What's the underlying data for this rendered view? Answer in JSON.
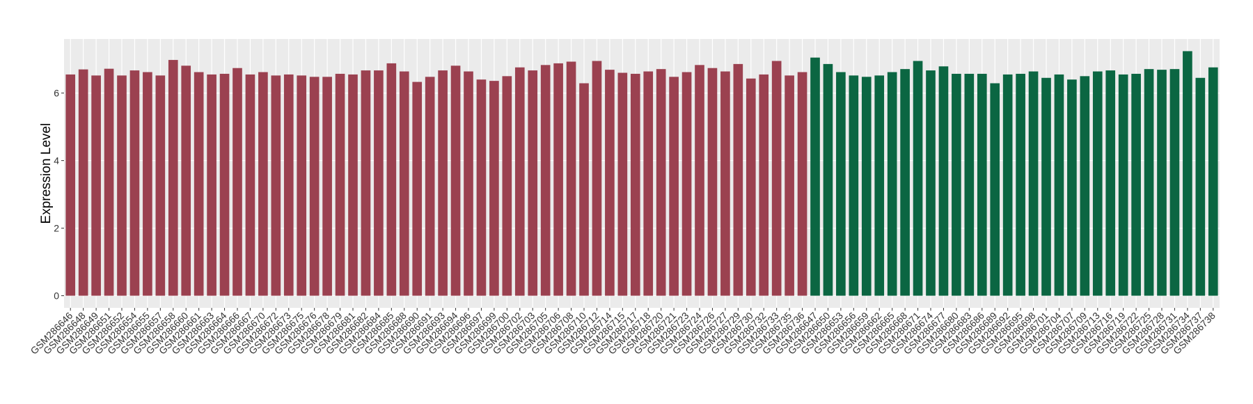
{
  "chart_data": {
    "type": "bar",
    "ylabel": "Expression Level",
    "categories": [
      "GSM286646",
      "GSM286648",
      "GSM286649",
      "GSM286651",
      "GSM286652",
      "GSM286654",
      "GSM286655",
      "GSM286657",
      "GSM286658",
      "GSM286660",
      "GSM286661",
      "GSM286663",
      "GSM286664",
      "GSM286666",
      "GSM286667",
      "GSM286670",
      "GSM286672",
      "GSM286673",
      "GSM286675",
      "GSM286676",
      "GSM286678",
      "GSM286679",
      "GSM286681",
      "GSM286682",
      "GSM286684",
      "GSM286685",
      "GSM286688",
      "GSM286690",
      "GSM286691",
      "GSM286693",
      "GSM286694",
      "GSM286696",
      "GSM286697",
      "GSM286699",
      "GSM286700",
      "GSM286702",
      "GSM286703",
      "GSM286705",
      "GSM286706",
      "GSM286708",
      "GSM286710",
      "GSM286712",
      "GSM286714",
      "GSM286715",
      "GSM286717",
      "GSM286718",
      "GSM286720",
      "GSM286721",
      "GSM286723",
      "GSM286724",
      "GSM286726",
      "GSM286727",
      "GSM286729",
      "GSM286730",
      "GSM286732",
      "GSM286733",
      "GSM286735",
      "GSM286736",
      "GSM286647",
      "GSM286650",
      "GSM286653",
      "GSM286656",
      "GSM286659",
      "GSM286662",
      "GSM286665",
      "GSM286668",
      "GSM286671",
      "GSM286674",
      "GSM286677",
      "GSM286680",
      "GSM286683",
      "GSM286686",
      "GSM286689",
      "GSM286692",
      "GSM286695",
      "GSM286698",
      "GSM286701",
      "GSM286704",
      "GSM286707",
      "GSM286709",
      "GSM286713",
      "GSM286716",
      "GSM286719",
      "GSM286722",
      "GSM286725",
      "GSM286728",
      "GSM286731",
      "GSM286734",
      "GSM286737",
      "GSM286738"
    ],
    "series": [
      {
        "color": "#9b4150",
        "values": [
          6.55,
          6.7,
          6.52,
          6.72,
          6.52,
          6.67,
          6.62,
          6.52,
          6.98,
          6.81,
          6.62,
          6.55,
          6.57,
          6.74,
          6.55,
          6.62,
          6.52,
          6.55,
          6.52,
          6.48,
          6.48,
          6.57,
          6.55,
          6.67,
          6.67,
          6.88,
          6.64,
          6.33,
          6.48,
          6.67,
          6.81,
          6.64,
          6.4,
          6.36,
          6.5,
          6.76,
          6.67,
          6.83,
          6.88,
          6.93,
          6.29,
          6.95,
          6.69,
          6.6,
          6.57,
          6.64,
          6.71,
          6.48,
          6.62,
          6.83,
          6.74,
          6.64,
          6.86,
          6.43,
          6.55,
          6.95,
          6.52,
          6.62,
          null,
          null,
          null,
          null,
          null,
          null,
          null,
          null,
          null,
          null,
          null,
          null,
          null,
          null,
          null,
          null,
          null,
          null,
          null,
          null,
          null,
          null,
          null,
          null,
          null,
          null,
          null,
          null,
          null,
          null,
          null,
          null
        ]
      },
      {
        "color": "#0b6642",
        "values": [
          null,
          null,
          null,
          null,
          null,
          null,
          null,
          null,
          null,
          null,
          null,
          null,
          null,
          null,
          null,
          null,
          null,
          null,
          null,
          null,
          null,
          null,
          null,
          null,
          null,
          null,
          null,
          null,
          null,
          null,
          null,
          null,
          null,
          null,
          null,
          null,
          null,
          null,
          null,
          null,
          null,
          null,
          null,
          null,
          null,
          null,
          null,
          null,
          null,
          null,
          null,
          null,
          null,
          null,
          null,
          null,
          null,
          null,
          7.05,
          6.86,
          6.62,
          6.52,
          6.48,
          6.52,
          6.62,
          6.71,
          6.95,
          6.67,
          6.79,
          6.57,
          6.57,
          6.57,
          6.29,
          6.55,
          6.57,
          6.64,
          6.45,
          6.55,
          6.4,
          6.5,
          6.64,
          6.67,
          6.55,
          6.57,
          6.71,
          6.69,
          6.71,
          7.24,
          6.45,
          6.76
        ]
      }
    ],
    "ylim": [
      -0.36,
      7.6
    ],
    "yticks": [
      0,
      2,
      4,
      6
    ],
    "grid": true
  }
}
